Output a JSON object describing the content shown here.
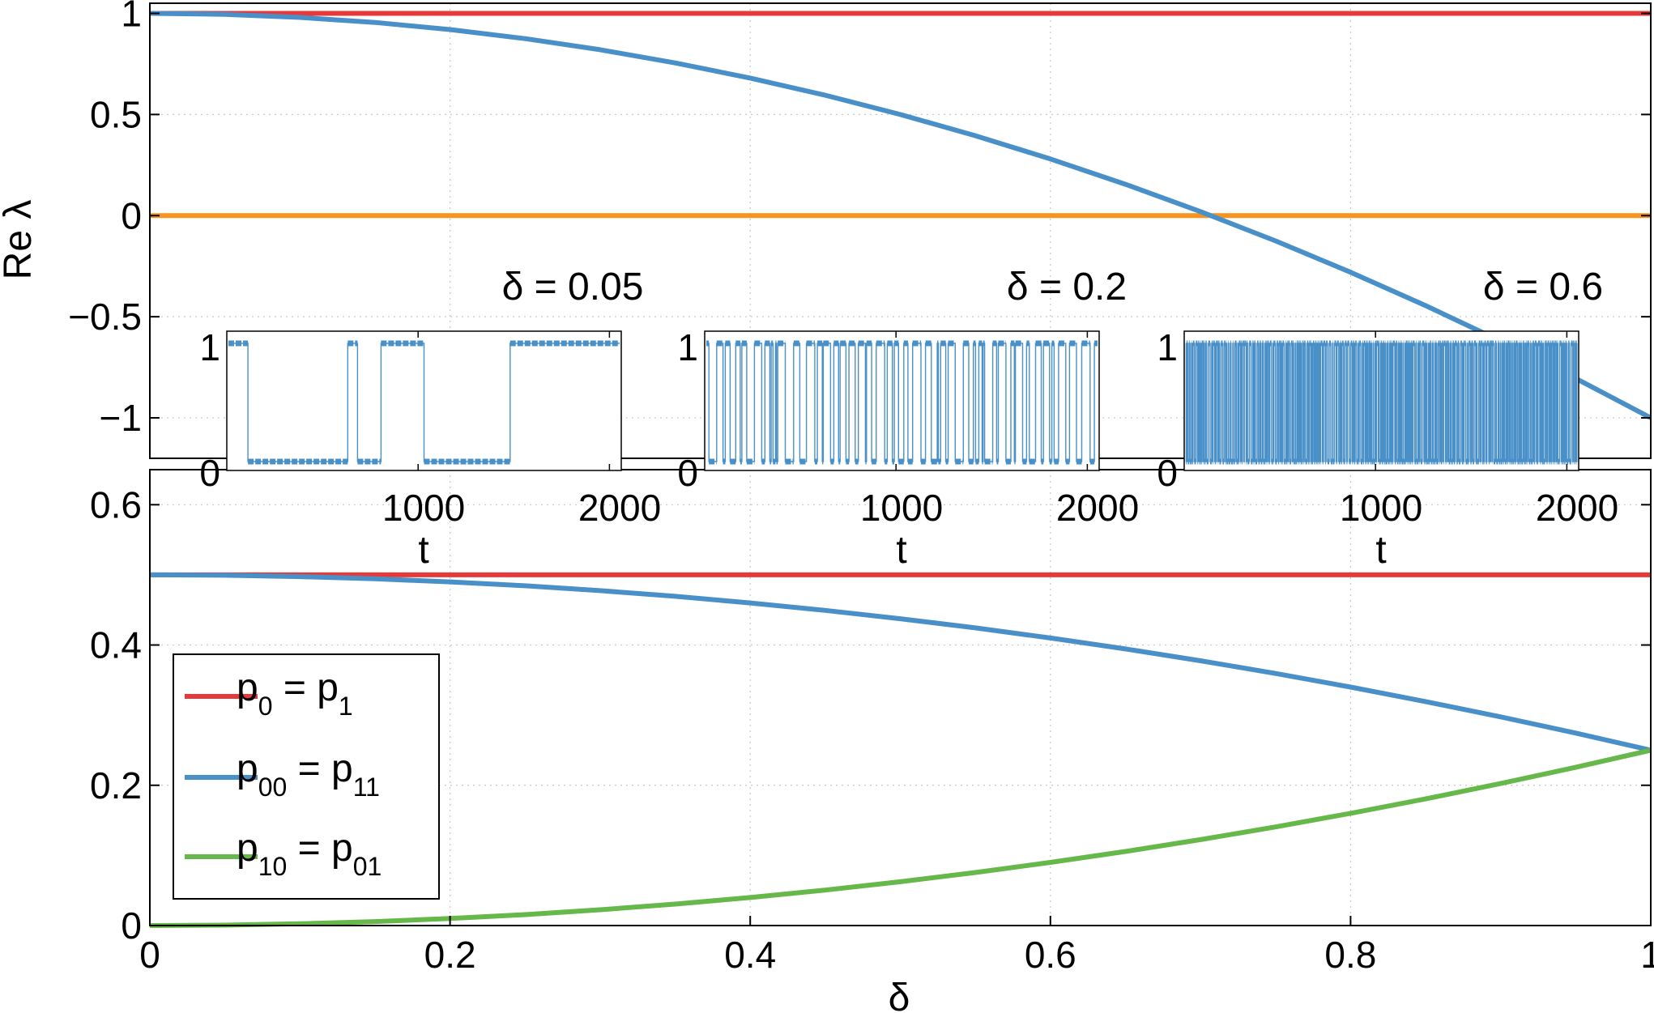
{
  "chart_data": [
    {
      "type": "line",
      "panel": "top",
      "ylabel": "Re λ",
      "xlim": [
        0,
        1
      ],
      "ylim": [
        -1.2,
        1.05
      ],
      "yticks": [
        "1",
        "0.5",
        "0",
        "−0.5",
        "−1"
      ],
      "ytick_values": [
        1,
        0.5,
        0,
        -0.5,
        -1
      ],
      "grid": true,
      "x": [
        0,
        0.05,
        0.1,
        0.15,
        0.2,
        0.25,
        0.3,
        0.35,
        0.4,
        0.45,
        0.5,
        0.55,
        0.6,
        0.65,
        0.7,
        0.75,
        0.8,
        0.85,
        0.9,
        0.95,
        1
      ],
      "series": [
        {
          "color": "#e8393a",
          "values": [
            1,
            1,
            1,
            1,
            1,
            1,
            1,
            1,
            1,
            1,
            1,
            1,
            1,
            1,
            1,
            1,
            1,
            1,
            1,
            1,
            1
          ]
        },
        {
          "color": "#f7941d",
          "values": [
            0,
            0,
            0,
            0,
            0,
            0,
            0,
            0,
            0,
            0,
            0,
            0,
            0,
            0,
            0,
            0,
            0,
            0,
            0,
            0,
            0
          ]
        },
        {
          "color": "#4a90c8",
          "values": [
            1,
            0.995,
            0.98,
            0.955,
            0.92,
            0.875,
            0.82,
            0.755,
            0.68,
            0.595,
            0.5,
            0.395,
            0.28,
            0.155,
            0.02,
            -0.125,
            -0.28,
            -0.445,
            -0.62,
            -0.805,
            -1
          ]
        }
      ]
    },
    {
      "type": "line",
      "panel": "bottom",
      "xlabel": "δ",
      "xlim": [
        0,
        1
      ],
      "ylim": [
        0,
        0.65
      ],
      "xticks": [
        "0",
        "0.2",
        "0.4",
        "0.6",
        "0.8",
        "1"
      ],
      "xtick_values": [
        0,
        0.2,
        0.4,
        0.6,
        0.8,
        1
      ],
      "yticks": [
        "0.6",
        "0.4",
        "0.2",
        "0"
      ],
      "ytick_values": [
        0.6,
        0.4,
        0.2,
        0
      ],
      "grid": true,
      "legend_placement": "middle-left",
      "x": [
        0,
        0.05,
        0.1,
        0.15,
        0.2,
        0.25,
        0.3,
        0.35,
        0.4,
        0.45,
        0.5,
        0.55,
        0.6,
        0.65,
        0.7,
        0.75,
        0.8,
        0.85,
        0.9,
        0.95,
        1
      ],
      "series": [
        {
          "color": "#e8393a",
          "legend": {
            "main": "p",
            "sub1": "0",
            "mid": " = p",
            "sub2": "1"
          },
          "values": [
            0.5,
            0.5,
            0.5,
            0.5,
            0.5,
            0.5,
            0.5,
            0.5,
            0.5,
            0.5,
            0.5,
            0.5,
            0.5,
            0.5,
            0.5,
            0.5,
            0.5,
            0.5,
            0.5,
            0.5,
            0.5
          ]
        },
        {
          "color": "#4a90c8",
          "legend": {
            "main": "p",
            "sub1": "00",
            "mid": " = p",
            "sub2": "11"
          },
          "values": [
            0.5,
            0.4994,
            0.4975,
            0.4944,
            0.49,
            0.4844,
            0.4775,
            0.4694,
            0.46,
            0.4494,
            0.4375,
            0.4244,
            0.41,
            0.3944,
            0.3775,
            0.3594,
            0.34,
            0.3194,
            0.2975,
            0.2744,
            0.25
          ]
        },
        {
          "color": "#66b84a",
          "legend": {
            "main": "p",
            "sub1": "10",
            "mid": " = p",
            "sub2": "01"
          },
          "values": [
            0,
            0.0006,
            0.0025,
            0.0056,
            0.01,
            0.0156,
            0.0225,
            0.0306,
            0.04,
            0.0506,
            0.0625,
            0.0756,
            0.09,
            0.1056,
            0.1225,
            0.1406,
            0.16,
            0.1806,
            0.2025,
            0.2256,
            0.25
          ]
        }
      ]
    },
    {
      "type": "line",
      "panel": "inset",
      "title": "δ = 0.05",
      "xlabel": "t",
      "xticks": [
        "1000",
        "2000"
      ],
      "yticks": [
        "1",
        "0"
      ],
      "switch_density": "low"
    },
    {
      "type": "line",
      "panel": "inset",
      "title": "δ = 0.2",
      "xlabel": "t",
      "xticks": [
        "1000",
        "2000"
      ],
      "yticks": [
        "1",
        "0"
      ],
      "switch_density": "medium"
    },
    {
      "type": "line",
      "panel": "inset",
      "title": "δ = 0.6",
      "xlabel": "t",
      "xticks": [
        "1000",
        "2000"
      ],
      "yticks": [
        "1",
        "0"
      ],
      "switch_density": "high"
    }
  ]
}
